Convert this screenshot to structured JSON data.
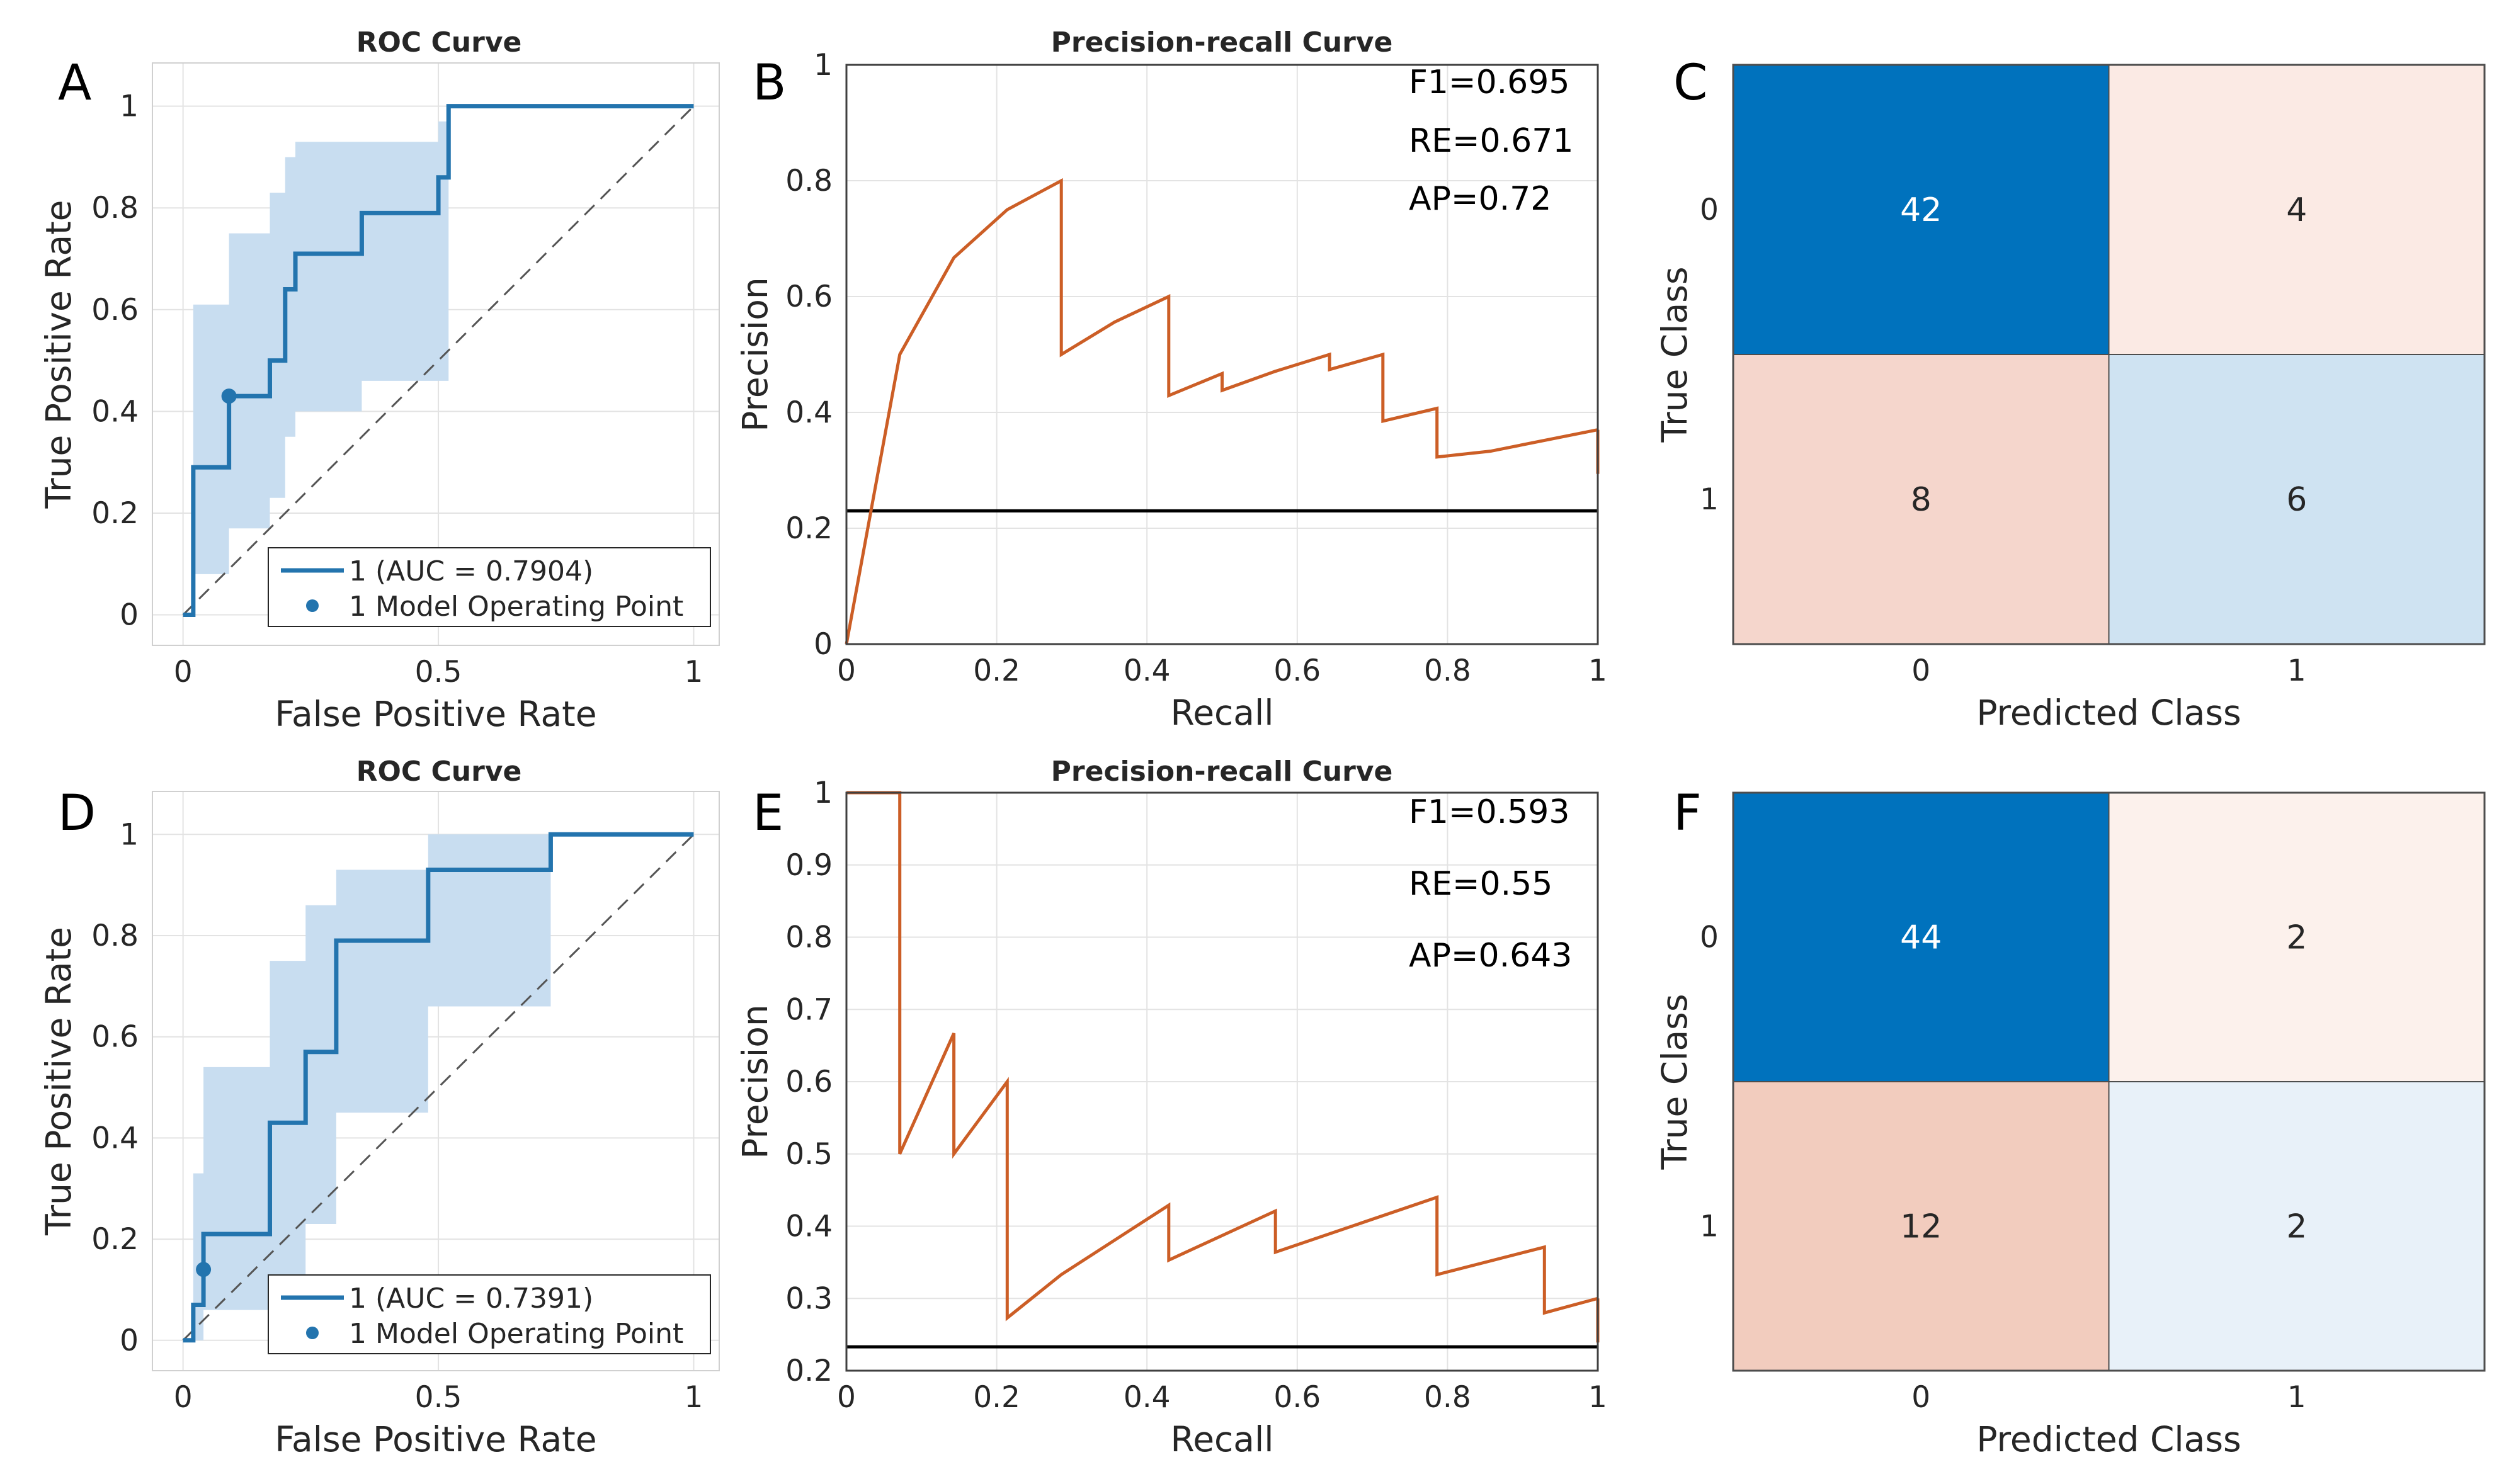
{
  "chart_data": [
    {
      "id": "A",
      "type": "line",
      "panel_label": "A",
      "title": "ROC Curve",
      "xlabel": "False Positive Rate",
      "ylabel": "True Positive Rate",
      "xlim": [
        0,
        1
      ],
      "ylim": [
        0,
        1
      ],
      "xticks": [
        {
          "v": 0,
          "label": "0"
        },
        {
          "v": 0.5,
          "label": "0.5"
        },
        {
          "v": 1,
          "label": "1"
        }
      ],
      "yticks": [
        {
          "v": 0,
          "label": "0"
        },
        {
          "v": 0.2,
          "label": "0.2"
        },
        {
          "v": 0.4,
          "label": "0.4"
        },
        {
          "v": 0.6,
          "label": "0.6"
        },
        {
          "v": 0.8,
          "label": "0.8"
        },
        {
          "v": 1,
          "label": "1"
        }
      ],
      "grid": true,
      "legend": [
        "1 (AUC = 0.7904)",
        "1 Model Operating Point"
      ],
      "legend_position": "bottom-right",
      "roc": {
        "x": [
          0,
          0.02,
          0.02,
          0.09,
          0.09,
          0.17,
          0.17,
          0.2,
          0.2,
          0.22,
          0.22,
          0.35,
          0.35,
          0.5,
          0.5,
          0.52,
          0.52,
          1
        ],
        "y": [
          0,
          0,
          0.29,
          0.29,
          0.43,
          0.43,
          0.5,
          0.5,
          0.64,
          0.64,
          0.71,
          0.71,
          0.79,
          0.79,
          0.86,
          0.86,
          1,
          1
        ]
      },
      "band_upper": {
        "x": [
          0,
          0.02,
          0.02,
          0.09,
          0.09,
          0.17,
          0.17,
          0.2,
          0.2,
          0.22,
          0.22,
          0.35,
          0.35,
          0.5,
          0.5,
          0.52,
          0.52,
          1
        ],
        "y": [
          0,
          0,
          0.61,
          0.61,
          0.75,
          0.75,
          0.83,
          0.83,
          0.9,
          0.9,
          0.93,
          0.93,
          0.93,
          0.93,
          0.97,
          0.97,
          1,
          1
        ]
      },
      "band_lower": {
        "x": [
          0,
          0.02,
          0.02,
          0.09,
          0.09,
          0.17,
          0.17,
          0.2,
          0.2,
          0.22,
          0.22,
          0.35,
          0.35,
          0.5,
          0.5,
          0.52,
          0.52,
          1
        ],
        "y": [
          0,
          0,
          0.08,
          0.08,
          0.17,
          0.17,
          0.23,
          0.23,
          0.35,
          0.35,
          0.4,
          0.4,
          0.46,
          0.46,
          0.46,
          0.46,
          1,
          1
        ]
      },
      "operating_point": {
        "x": 0.09,
        "y": 0.43
      }
    },
    {
      "id": "B",
      "type": "line",
      "panel_label": "B",
      "title": "Precision-recall Curve",
      "xlabel": "Recall",
      "ylabel": "Precision",
      "xlim": [
        0,
        1
      ],
      "ylim": [
        0,
        1
      ],
      "xticks": [
        {
          "v": 0,
          "label": "0"
        },
        {
          "v": 0.2,
          "label": "0.2"
        },
        {
          "v": 0.4,
          "label": "0.4"
        },
        {
          "v": 0.6,
          "label": "0.6"
        },
        {
          "v": 0.8,
          "label": "0.8"
        },
        {
          "v": 1,
          "label": "1"
        }
      ],
      "yticks": [
        {
          "v": 0,
          "label": "0"
        },
        {
          "v": 0.2,
          "label": "0.2"
        },
        {
          "v": 0.4,
          "label": "0.4"
        },
        {
          "v": 0.6,
          "label": "0.6"
        },
        {
          "v": 0.8,
          "label": "0.8"
        },
        {
          "v": 1,
          "label": "1"
        }
      ],
      "grid": true,
      "baseline": 0.23,
      "annotations": [
        "F1=0.695",
        "RE=0.671",
        "AP=0.72"
      ],
      "pr": {
        "x": [
          0,
          0.071,
          0.143,
          0.214,
          0.286,
          0.286,
          0.357,
          0.429,
          0.429,
          0.5,
          0.5,
          0.571,
          0.643,
          0.643,
          0.714,
          0.714,
          0.786,
          0.786,
          0.857,
          0.857,
          1
        ],
        "y": [
          0,
          0.5,
          0.667,
          0.75,
          0.8,
          0.5,
          0.556,
          0.6,
          0.429,
          0.467,
          0.438,
          0.471,
          0.5,
          0.474,
          0.5,
          0.385,
          0.407,
          0.323,
          0.333,
          0.333,
          0.37
        ]
      }
    },
    {
      "id": "C",
      "type": "heatmap",
      "panel_label": "C",
      "xlabel": "Predicted Class",
      "ylabel": "True Class",
      "row_labels": [
        "0",
        "1"
      ],
      "col_labels": [
        "0",
        "1"
      ],
      "values": [
        [
          42,
          4
        ],
        [
          8,
          6
        ]
      ],
      "colors": [
        [
          "#0072BD",
          "#FBEAE4"
        ],
        [
          "#F5D6CC",
          "#CFE3F2"
        ]
      ],
      "text_colors": [
        [
          "#ffffff",
          "#262626"
        ],
        [
          "#262626",
          "#262626"
        ]
      ]
    },
    {
      "id": "D",
      "type": "line",
      "panel_label": "D",
      "title": "ROC Curve",
      "xlabel": "False Positive Rate",
      "ylabel": "True Positive Rate",
      "xlim": [
        0,
        1
      ],
      "ylim": [
        0,
        1
      ],
      "xticks": [
        {
          "v": 0,
          "label": "0"
        },
        {
          "v": 0.5,
          "label": "0.5"
        },
        {
          "v": 1,
          "label": "1"
        }
      ],
      "yticks": [
        {
          "v": 0,
          "label": "0"
        },
        {
          "v": 0.2,
          "label": "0.2"
        },
        {
          "v": 0.4,
          "label": "0.4"
        },
        {
          "v": 0.6,
          "label": "0.6"
        },
        {
          "v": 0.8,
          "label": "0.8"
        },
        {
          "v": 1,
          "label": "1"
        }
      ],
      "grid": true,
      "legend": [
        "1 (AUC = 0.7391)",
        "1 Model Operating Point"
      ],
      "legend_position": "bottom-right",
      "roc": {
        "x": [
          0,
          0.02,
          0.02,
          0.04,
          0.04,
          0.17,
          0.17,
          0.24,
          0.24,
          0.3,
          0.3,
          0.48,
          0.48,
          0.72,
          0.72,
          1
        ],
        "y": [
          0,
          0,
          0.07,
          0.07,
          0.21,
          0.21,
          0.43,
          0.43,
          0.57,
          0.57,
          0.79,
          0.79,
          0.93,
          0.93,
          1,
          1
        ]
      },
      "band_upper": {
        "x": [
          0,
          0.02,
          0.02,
          0.04,
          0.04,
          0.17,
          0.17,
          0.24,
          0.24,
          0.3,
          0.3,
          0.48,
          0.48,
          0.72,
          0.72,
          1
        ],
        "y": [
          0,
          0,
          0.33,
          0.33,
          0.54,
          0.54,
          0.75,
          0.75,
          0.86,
          0.86,
          0.93,
          0.93,
          1,
          1,
          1,
          1
        ]
      },
      "band_lower": {
        "x": [
          0,
          0.02,
          0.02,
          0.04,
          0.04,
          0.17,
          0.17,
          0.24,
          0.24,
          0.3,
          0.3,
          0.48,
          0.48,
          0.72,
          0.72,
          1
        ],
        "y": [
          0,
          0,
          0,
          0,
          0.06,
          0.06,
          0.13,
          0.13,
          0.23,
          0.23,
          0.45,
          0.45,
          0.66,
          0.66,
          1,
          1
        ]
      },
      "operating_point": {
        "x": 0.04,
        "y": 0.14
      }
    },
    {
      "id": "E",
      "type": "line",
      "panel_label": "E",
      "title": "Precision-recall Curve",
      "xlabel": "Recall",
      "ylabel": "Precision",
      "xlim": [
        0,
        1
      ],
      "ylim": [
        0.2,
        1
      ],
      "xticks": [
        {
          "v": 0,
          "label": "0"
        },
        {
          "v": 0.2,
          "label": "0.2"
        },
        {
          "v": 0.4,
          "label": "0.4"
        },
        {
          "v": 0.6,
          "label": "0.6"
        },
        {
          "v": 0.8,
          "label": "0.8"
        },
        {
          "v": 1,
          "label": "1"
        }
      ],
      "yticks": [
        {
          "v": 0.2,
          "label": "0.2"
        },
        {
          "v": 0.3,
          "label": "0.3"
        },
        {
          "v": 0.4,
          "label": "0.4"
        },
        {
          "v": 0.5,
          "label": "0.5"
        },
        {
          "v": 0.6,
          "label": "0.6"
        },
        {
          "v": 0.7,
          "label": "0.7"
        },
        {
          "v": 0.8,
          "label": "0.8"
        },
        {
          "v": 0.9,
          "label": "0.9"
        },
        {
          "v": 1,
          "label": "1"
        }
      ],
      "grid": true,
      "baseline": 0.233,
      "annotations": [
        "F1=0.593",
        "RE=0.55",
        "AP=0.643"
      ],
      "pr": {
        "x": [
          0,
          0.071,
          0.071,
          0.143,
          0.143,
          0.214,
          0.214,
          0.286,
          0.429,
          0.429,
          0.571,
          0.571,
          0.786,
          0.786,
          0.929,
          0.929,
          1
        ],
        "y": [
          1,
          1,
          0.5,
          0.667,
          0.5,
          0.6,
          0.273,
          0.333,
          0.429,
          0.353,
          0.421,
          0.364,
          0.44,
          0.333,
          0.371,
          0.28,
          0.3
        ]
      }
    },
    {
      "id": "F",
      "type": "heatmap",
      "panel_label": "F",
      "xlabel": "Predicted Class",
      "ylabel": "True Class",
      "row_labels": [
        "0",
        "1"
      ],
      "col_labels": [
        "0",
        "1"
      ],
      "values": [
        [
          44,
          2
        ],
        [
          12,
          2
        ]
      ],
      "colors": [
        [
          "#0072BD",
          "#FCF1EC"
        ],
        [
          "#F2CCBE",
          "#E8F1F9"
        ]
      ],
      "text_colors": [
        [
          "#ffffff",
          "#262626"
        ],
        [
          "#262626",
          "#262626"
        ]
      ]
    }
  ],
  "colors": {
    "roc_line": "#2374AE",
    "roc_band": "#C8DDF0",
    "pr_line": "#CC5E26",
    "baseline": "#000000",
    "diagonal": "#555555",
    "grid": "#E3E3E3",
    "axis": "#262626"
  }
}
